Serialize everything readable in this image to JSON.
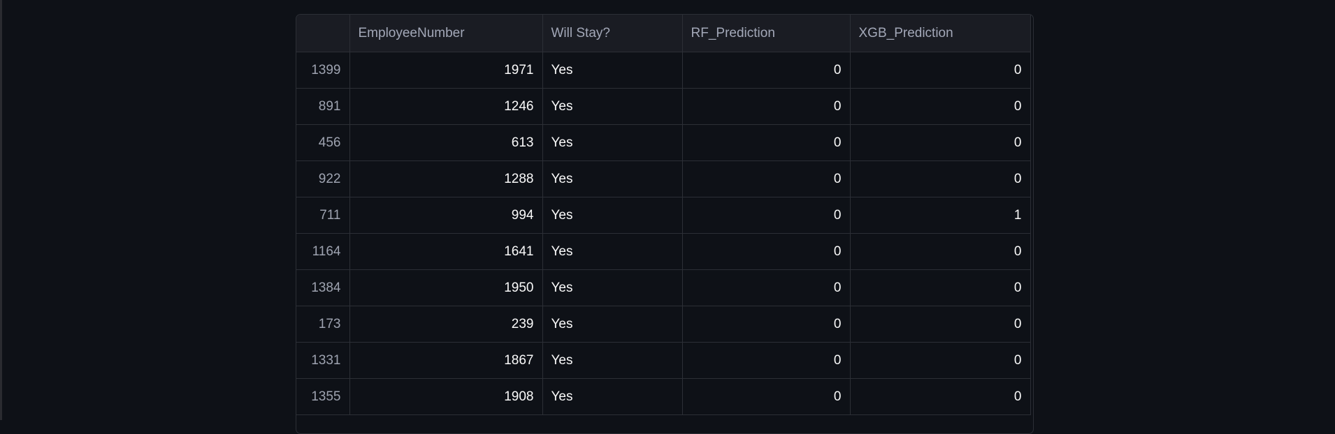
{
  "table": {
    "columns": [
      "",
      "EmployeeNumber",
      "Will Stay?",
      "RF_Prediction",
      "XGB_Prediction"
    ],
    "rows": [
      {
        "index": "1399",
        "employee_number": "1971",
        "will_stay": "Yes",
        "rf_prediction": "0",
        "xgb_prediction": "0"
      },
      {
        "index": "891",
        "employee_number": "1246",
        "will_stay": "Yes",
        "rf_prediction": "0",
        "xgb_prediction": "0"
      },
      {
        "index": "456",
        "employee_number": "613",
        "will_stay": "Yes",
        "rf_prediction": "0",
        "xgb_prediction": "0"
      },
      {
        "index": "922",
        "employee_number": "1288",
        "will_stay": "Yes",
        "rf_prediction": "0",
        "xgb_prediction": "0"
      },
      {
        "index": "711",
        "employee_number": "994",
        "will_stay": "Yes",
        "rf_prediction": "0",
        "xgb_prediction": "1"
      },
      {
        "index": "1164",
        "employee_number": "1641",
        "will_stay": "Yes",
        "rf_prediction": "0",
        "xgb_prediction": "0"
      },
      {
        "index": "1384",
        "employee_number": "1950",
        "will_stay": "Yes",
        "rf_prediction": "0",
        "xgb_prediction": "0"
      },
      {
        "index": "173",
        "employee_number": "239",
        "will_stay": "Yes",
        "rf_prediction": "0",
        "xgb_prediction": "0"
      },
      {
        "index": "1331",
        "employee_number": "1867",
        "will_stay": "Yes",
        "rf_prediction": "0",
        "xgb_prediction": "0"
      },
      {
        "index": "1355",
        "employee_number": "1908",
        "will_stay": "Yes",
        "rf_prediction": "0",
        "xgb_prediction": "0"
      }
    ]
  },
  "colors": {
    "background": "#0e1117",
    "header_background": "#1a1c23",
    "grid_line": "#2c2f36",
    "cell_text": "#fafafa",
    "muted_text": "#a3a8b8"
  }
}
